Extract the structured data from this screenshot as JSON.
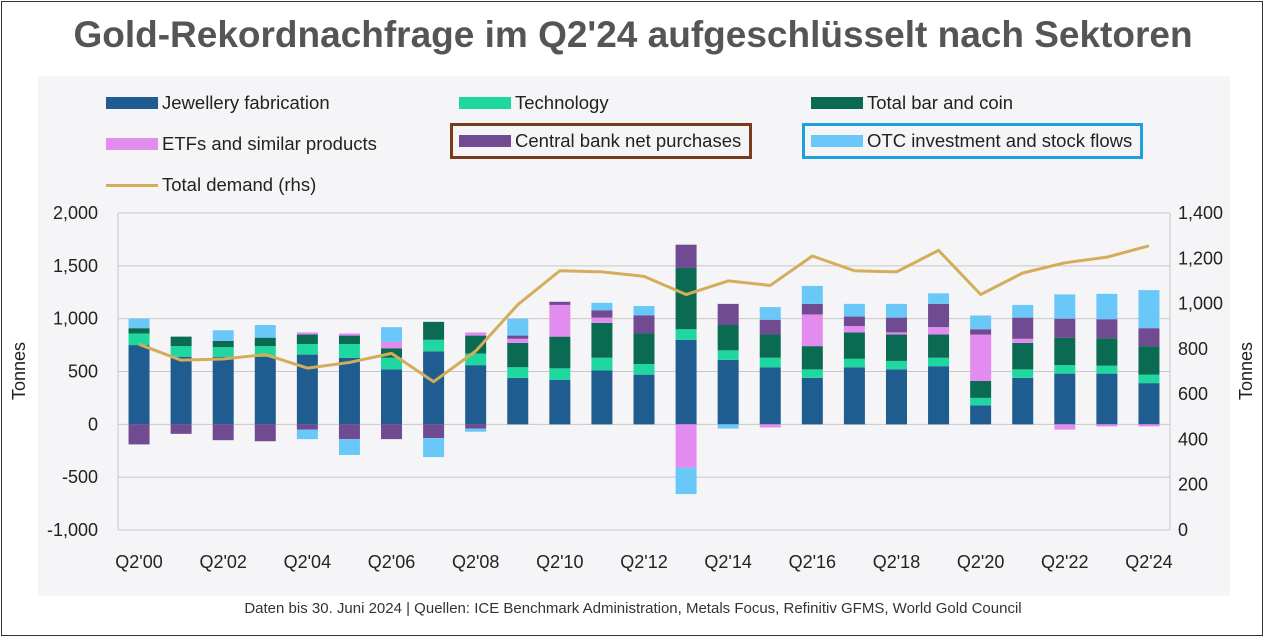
{
  "title": "Gold-Rekordnachfrage im Q2'24 aufgeschlüsselt nach Sektoren",
  "source": "Daten bis 30. Juni 2024 | Quellen: ICE Benchmark Administration, Metals Focus, Refinitiv GFMS, World Gold Council",
  "legend": [
    {
      "label": "Jewellery fabrication",
      "color": "#1f5c8f"
    },
    {
      "label": "Technology",
      "color": "#1fd8a0"
    },
    {
      "label": "Total bar and coin",
      "color": "#0b6b52"
    },
    {
      "label": "ETFs and similar products",
      "color": "#e38cf0"
    },
    {
      "label": "Central bank net purchases",
      "color": "#704b92"
    },
    {
      "label": "OTC investment and stock flows",
      "color": "#69c8f8"
    },
    {
      "label": "Total demand (rhs)",
      "color": "#d4ad5a"
    }
  ],
  "chart_data": {
    "type": "bar",
    "stacked": true,
    "categories": [
      "Q2'00",
      "Q2'01",
      "Q2'02",
      "Q2'03",
      "Q2'04",
      "Q2'05",
      "Q2'06",
      "Q2'07",
      "Q2'08",
      "Q2'09",
      "Q2'10",
      "Q2'11",
      "Q2'12",
      "Q2'13",
      "Q2'14",
      "Q2'15",
      "Q2'16",
      "Q2'17",
      "Q2'18",
      "Q2'19",
      "Q2'20",
      "Q2'21",
      "Q2'22",
      "Q2'23",
      "Q2'24"
    ],
    "x_tick_labels": [
      "Q2'00",
      "Q2'02",
      "Q2'04",
      "Q2'06",
      "Q2'08",
      "Q2'10",
      "Q2'12",
      "Q2'14",
      "Q2'16",
      "Q2'18",
      "Q2'20",
      "Q2'22",
      "Q2'24"
    ],
    "ylabel": "Tonnes",
    "y2label": "Tonnes",
    "ylim": [
      -1000,
      2000
    ],
    "yticks": [
      "-1,000",
      "-500",
      "0",
      "500",
      "1,000",
      "1,500",
      "2,000"
    ],
    "y2lim": [
      0,
      1400
    ],
    "y2ticks": [
      "0",
      "200",
      "400",
      "600",
      "800",
      "1,000",
      "1,200",
      "1,400"
    ],
    "grid": true,
    "legend_position": "top",
    "series": [
      {
        "name": "Jewellery fabrication",
        "values": [
          750,
          640,
          640,
          640,
          660,
          630,
          520,
          690,
          560,
          440,
          420,
          510,
          470,
          800,
          610,
          540,
          440,
          540,
          520,
          550,
          180,
          440,
          480,
          480,
          390
        ]
      },
      {
        "name": "Technology",
        "values": [
          110,
          100,
          90,
          100,
          100,
          130,
          110,
          110,
          110,
          100,
          110,
          120,
          100,
          100,
          90,
          90,
          80,
          80,
          80,
          80,
          70,
          80,
          80,
          75,
          80
        ]
      },
      {
        "name": "Total bar and coin",
        "values": [
          50,
          90,
          60,
          80,
          90,
          80,
          90,
          170,
          170,
          230,
          300,
          330,
          290,
          580,
          240,
          220,
          220,
          250,
          250,
          220,
          160,
          250,
          260,
          260,
          270
        ]
      },
      {
        "name": "ETFs and similar products",
        "values": [
          0,
          0,
          0,
          0,
          20,
          20,
          60,
          0,
          30,
          40,
          300,
          50,
          0,
          -410,
          0,
          -30,
          300,
          60,
          20,
          70,
          440,
          40,
          -50,
          -20,
          -20
        ]
      },
      {
        "name": "Central bank net purchases",
        "values": [
          -190,
          -90,
          -150,
          -160,
          -50,
          -140,
          -140,
          -130,
          -40,
          30,
          30,
          70,
          170,
          220,
          200,
          140,
          100,
          90,
          140,
          220,
          50,
          200,
          180,
          180,
          170
        ]
      },
      {
        "name": "OTC investment and stock flows",
        "values": [
          90,
          0,
          100,
          120,
          -90,
          -150,
          140,
          -180,
          -30,
          160,
          0,
          70,
          90,
          -250,
          -40,
          120,
          170,
          120,
          130,
          100,
          130,
          120,
          230,
          240,
          360
        ]
      }
    ],
    "total_demand_rhs": {
      "name": "Total demand (rhs)",
      "values": [
        820,
        750,
        755,
        775,
        715,
        740,
        780,
        655,
        790,
        995,
        1145,
        1140,
        1120,
        1040,
        1100,
        1080,
        1210,
        1145,
        1140,
        1235,
        1040,
        1135,
        1180,
        1205,
        1255
      ]
    }
  }
}
